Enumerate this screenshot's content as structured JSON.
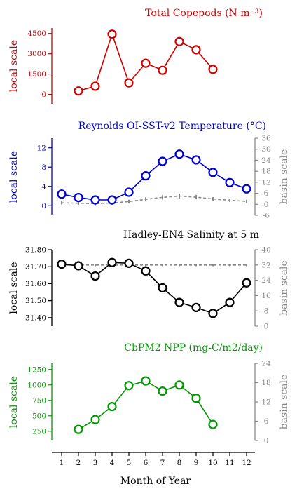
{
  "chart_data": [
    {
      "type": "line",
      "title": "Total Copepods (N m⁻³)",
      "ylabel": "local scale",
      "color": "#cc0000",
      "x": [
        2,
        3,
        4,
        5,
        6,
        7,
        8,
        9,
        10
      ],
      "values": [
        250,
        600,
        4450,
        850,
        2300,
        1780,
        3900,
        3300,
        1850
      ],
      "ylim": [
        -700,
        4900
      ],
      "yticks": [
        "0",
        "1500",
        "3000",
        "4500"
      ],
      "ytick_values": [
        0,
        1500,
        3000,
        4500
      ]
    },
    {
      "type": "line",
      "title": "Reynolds OI-SST-v2 Temperature (°C)",
      "ylabel": "local scale",
      "ylabel_right": "basin scale",
      "color": "#0000cc",
      "x": [
        1,
        2,
        3,
        4,
        5,
        6,
        7,
        8,
        9,
        10,
        11,
        12
      ],
      "values": [
        2.4,
        1.7,
        1.2,
        1.2,
        2.8,
        6.2,
        9.2,
        10.7,
        9.5,
        6.9,
        4.8,
        3.5
      ],
      "ylim": [
        -2,
        14
      ],
      "yticks": [
        "0",
        "4",
        "8",
        "12"
      ],
      "ytick_values": [
        0,
        4,
        8,
        12
      ],
      "basin_values": [
        0.8,
        0.6,
        0.4,
        0.7,
        1.5,
        2.7,
        3.8,
        4.5,
        3.9,
        2.9,
        2.2,
        1.6
      ],
      "basin_errors": [
        0.9,
        0.9,
        0.9,
        0.9,
        1.0,
        1.1,
        1.2,
        1.3,
        1.2,
        1.0,
        0.9,
        0.9
      ],
      "basin_ylim": [
        -6,
        36
      ],
      "basin_yticks": [
        "-6",
        "0",
        "6",
        "12",
        "18",
        "24",
        "30",
        "36"
      ],
      "basin_ytick_values": [
        -6,
        0,
        6,
        12,
        18,
        24,
        30,
        36
      ]
    },
    {
      "type": "line",
      "title": "Hadley-EN4 Salinity at 5 m",
      "ylabel": "local scale",
      "ylabel_right": "basin scale",
      "color": "#000000",
      "x": [
        1,
        2,
        3,
        4,
        5,
        6,
        7,
        8,
        9,
        10,
        11,
        12
      ],
      "values": [
        31.715,
        31.705,
        31.645,
        31.725,
        31.72,
        31.675,
        31.575,
        31.49,
        31.46,
        31.425,
        31.49,
        31.605
      ],
      "ylim": [
        31.35,
        31.8
      ],
      "yticks": [
        "31.40",
        "31.50",
        "31.60",
        "31.70",
        "31.80"
      ],
      "ytick_values": [
        31.4,
        31.5,
        31.6,
        31.7,
        31.8
      ],
      "basin_values": [
        32,
        32,
        32,
        32,
        32,
        32,
        32,
        32,
        32,
        32,
        32,
        32
      ],
      "basin_errors": [
        0.6,
        0.6,
        0.6,
        0.6,
        0.6,
        0.6,
        0.6,
        0.6,
        0.6,
        0.6,
        0.6,
        0.6
      ],
      "basin_ylim": [
        0,
        40
      ],
      "basin_yticks": [
        "0",
        "8",
        "16",
        "24",
        "32",
        "40"
      ],
      "basin_ytick_values": [
        0,
        8,
        16,
        24,
        32,
        40
      ]
    },
    {
      "type": "line",
      "title": "CbPM2 NPP (mg-C/m2/day)",
      "ylabel": "local scale",
      "ylabel_right": "basin scale",
      "color": "#009900",
      "x": [
        2,
        3,
        4,
        5,
        6,
        7,
        8,
        9,
        10
      ],
      "values": [
        280,
        440,
        650,
        990,
        1065,
        900,
        1000,
        785,
        360
      ],
      "ylim": [
        100,
        1350
      ],
      "yticks": [
        "250",
        "500",
        "750",
        "1000",
        "1250"
      ],
      "ytick_values": [
        250,
        500,
        750,
        1000,
        1250
      ],
      "basin_ylim": [
        0,
        24
      ],
      "basin_yticks": [
        "0",
        "6",
        "12",
        "18",
        "24"
      ],
      "basin_ytick_values": [
        0,
        6,
        12,
        18,
        24
      ]
    }
  ],
  "x_axis": {
    "label": "Month of Year",
    "ticks": [
      "1",
      "2",
      "3",
      "4",
      "5",
      "6",
      "7",
      "8",
      "9",
      "10",
      "11",
      "12"
    ]
  },
  "basin_color": "#888888",
  "axis_color_right": "#888888"
}
